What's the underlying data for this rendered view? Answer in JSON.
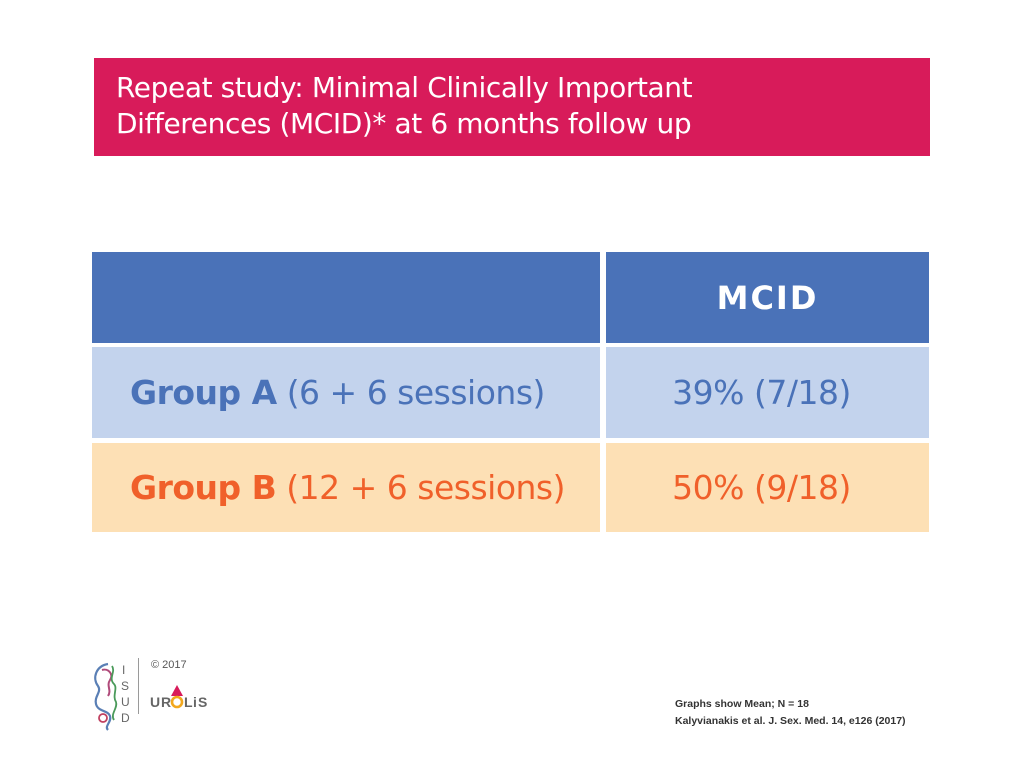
{
  "title": {
    "line1": "Repeat study: Minimal Clinically Important",
    "line2": "Differences (MCID)* at 6 months follow up"
  },
  "table": {
    "header": [
      "",
      "MCID"
    ],
    "rows": [
      {
        "group": "Group A",
        "sessions": "(6 + 6 sessions)",
        "value": "39% (7/18)"
      },
      {
        "group": "Group B",
        "sessions": "(12 + 6 sessions)",
        "value": "50% (9/18)"
      }
    ]
  },
  "footer": {
    "copyright": "© 2017",
    "isud_logo_text": "ISUD",
    "urolis_logo_text": "UROLIS",
    "note1": "Graphs show Mean; N = 18",
    "note2": "Kalyvianakis et al. J. Sex. Med. 14, e126 (2017)"
  },
  "colors": {
    "banner": "#d81b5a",
    "header": "#4a72b8",
    "row_a": "#c3d3ed",
    "row_b": "#fde0b5",
    "group_a_text": "#4a72b8",
    "group_b_text": "#f0602a"
  }
}
